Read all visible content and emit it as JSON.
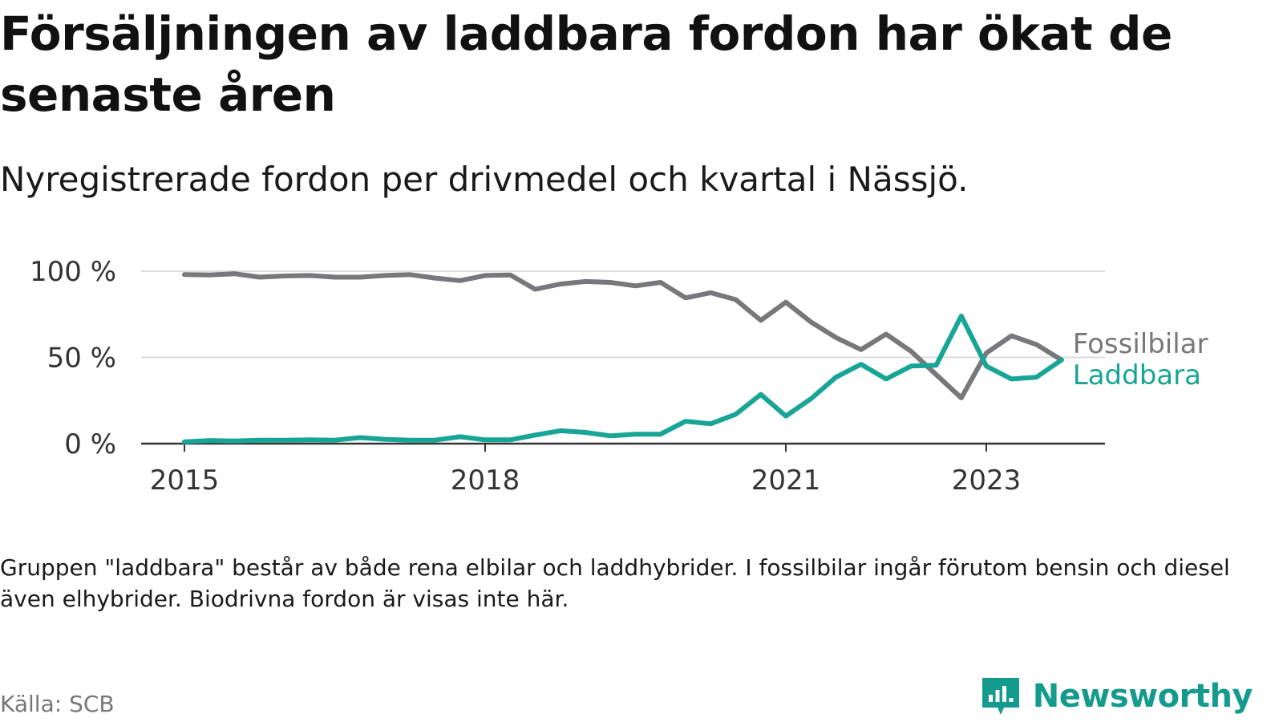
{
  "header": {
    "title": "Försäljningen av laddbara fordon har ökat de senaste åren",
    "subtitle": "Nyregistrerade fordon per drivmedel och kvartal i Nässjö."
  },
  "footer": {
    "note": "Gruppen \"laddbara\" består av både rena elbilar och laddhybrider. I fossilbilar ingår förutom bensin och diesel även elhybrider. Biodrivna fordon är visas inte här.",
    "source": "Källa: SCB",
    "brand": "Newsworthy"
  },
  "colors": {
    "fossil": "#77777c",
    "laddbara": "#18a596",
    "grid": "#dcdcdc",
    "axis": "#333333",
    "brand": "#159b8e"
  },
  "chart_data": {
    "type": "line",
    "title": "Försäljningen av laddbara fordon har ökat de senaste åren",
    "subtitle": "Nyregistrerade fordon per drivmedel och kvartal i Nässjö.",
    "xlabel": "",
    "ylabel": "",
    "ylim": [
      0,
      100
    ],
    "yticks": [
      0,
      50,
      100
    ],
    "ytick_labels": [
      "0 %",
      "50 %",
      "100 %"
    ],
    "xlim": [
      2015.0,
      2024.2
    ],
    "xticks": [
      2015,
      2018,
      2021,
      2023
    ],
    "xtick_labels": [
      "2015",
      "2018",
      "2021",
      "2023"
    ],
    "grid": true,
    "legend": "direct labels at right end of lines",
    "x": [
      2015.0,
      2015.25,
      2015.5,
      2015.75,
      2016.0,
      2016.25,
      2016.5,
      2016.75,
      2017.0,
      2017.25,
      2017.5,
      2017.75,
      2018.0,
      2018.25,
      2018.5,
      2018.75,
      2019.0,
      2019.25,
      2019.5,
      2019.75,
      2020.0,
      2020.25,
      2020.5,
      2020.75,
      2021.0,
      2021.25,
      2021.5,
      2021.75,
      2022.0,
      2022.25,
      2022.5,
      2022.75,
      2023.0,
      2023.25,
      2023.5,
      2023.75
    ],
    "series": [
      {
        "name": "Fossilbilar",
        "color": "#77777c",
        "values": [
          98,
          97.8,
          98.5,
          96.5,
          97.2,
          97.5,
          96.5,
          96.5,
          97.5,
          98,
          96,
          94.5,
          97.5,
          97.8,
          89.5,
          92.5,
          94,
          93.5,
          91.5,
          93.5,
          84.5,
          87.5,
          83.5,
          71.5,
          82,
          70.5,
          61.5,
          54.5,
          63.5,
          53.5,
          40,
          26.5,
          52.5,
          62.5,
          57.5,
          48.5
        ]
      },
      {
        "name": "Laddbara",
        "color": "#18a596",
        "values": [
          1,
          1.8,
          1.5,
          2,
          2,
          2.2,
          2,
          3.5,
          2.5,
          2,
          2,
          4,
          2.2,
          2.2,
          5,
          7.5,
          6.5,
          4.5,
          5.5,
          5.5,
          13,
          11.5,
          17,
          28.5,
          16,
          26,
          38.5,
          46,
          37.5,
          45,
          45.5,
          74,
          45,
          37.5,
          38.5,
          48.5
        ]
      }
    ]
  }
}
